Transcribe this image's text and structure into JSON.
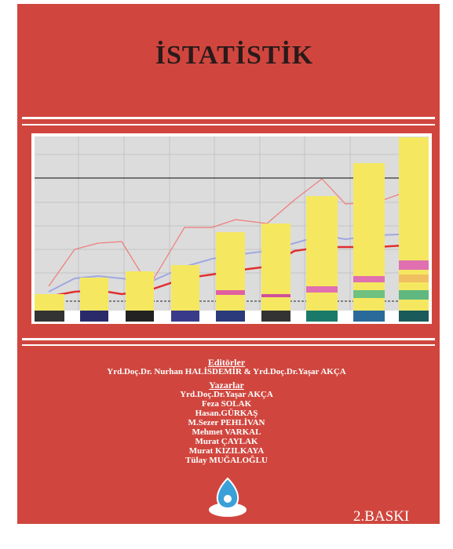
{
  "title": "İSTATİSTİK",
  "editors": {
    "heading": "Editörler",
    "names": "Yrd.Doç.Dr. Nurhan HALİSDEMİR & Yrd.Doç.Dr.Yaşar AKÇA"
  },
  "authors": {
    "heading": "Yazarlar",
    "names": [
      "Yrd.Doç.Dr.Yaşar AKÇA",
      "Feza SOLAK",
      "Hasan.GÜRKAŞ",
      "M.Sezer PEHLİVAN",
      "Mehmet VARKAL",
      "Murat ÇAYLAK",
      "Murat KIZILKAYA",
      "Tülay MUĞALOĞLU"
    ]
  },
  "edition": "2.BASKI"
}
